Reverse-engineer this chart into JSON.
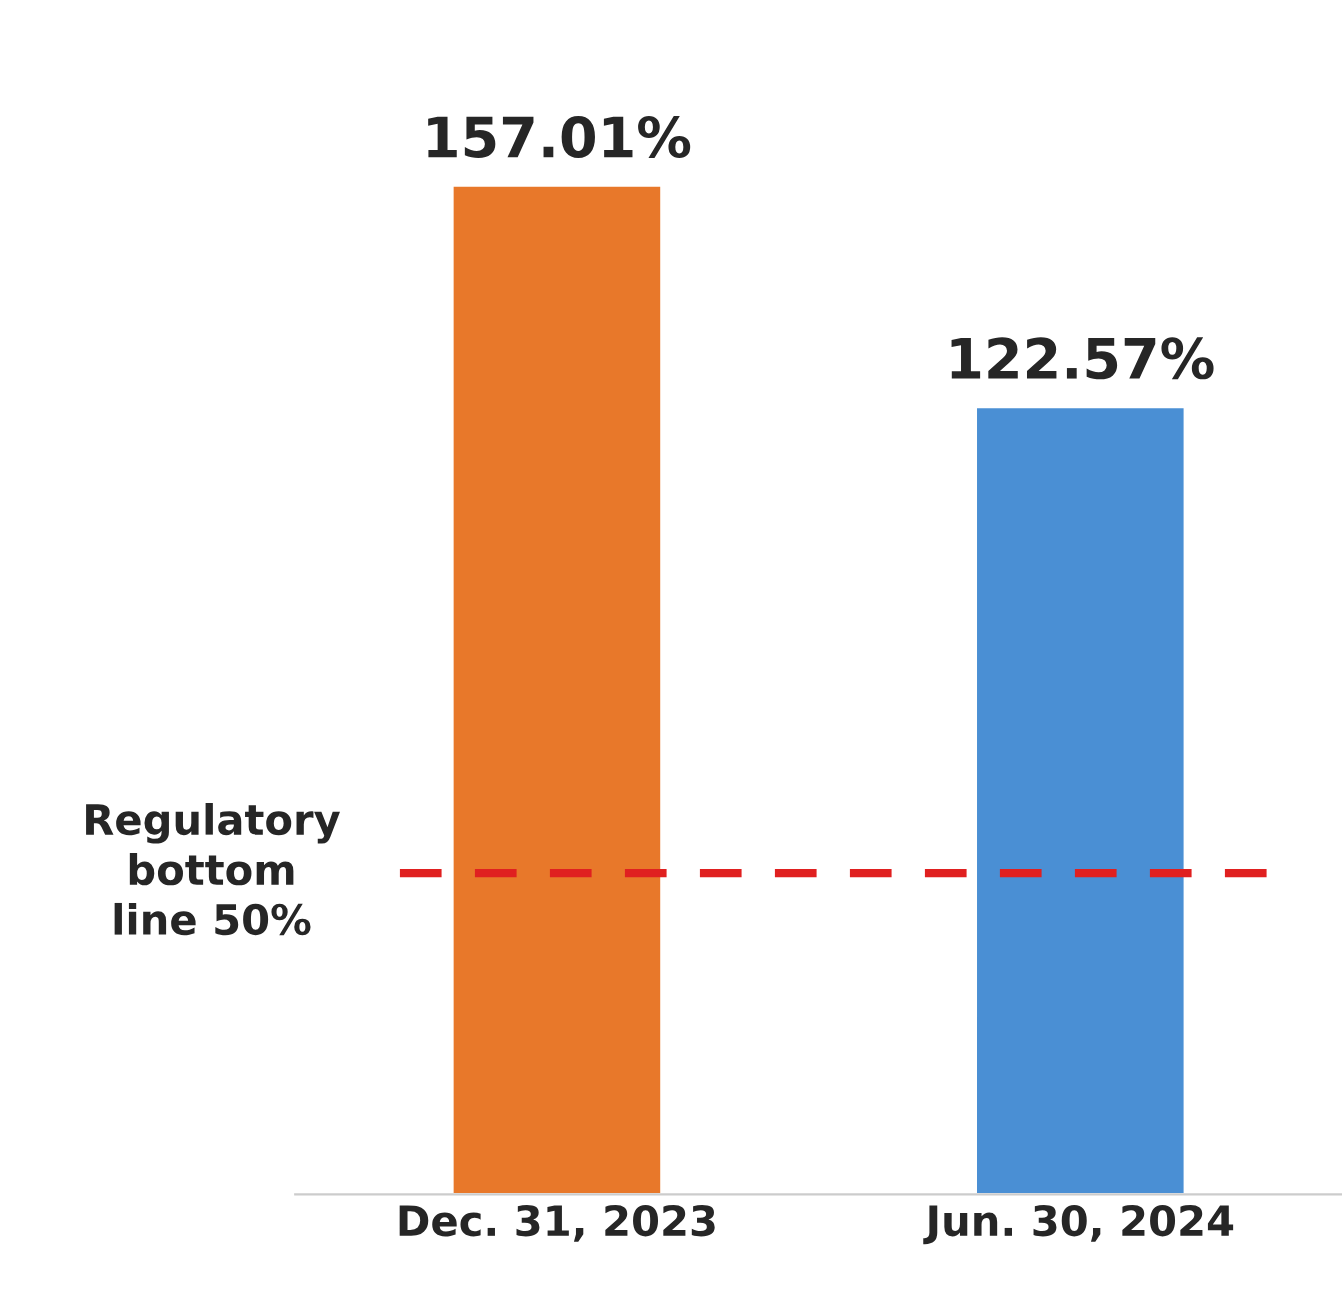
{
  "chart_data": {
    "type": "bar",
    "categories": [
      "Dec. 31, 2023",
      "Jun. 30, 2024"
    ],
    "values": [
      157.01,
      122.57
    ],
    "colors": [
      "#e8782a",
      "#4a8fd4"
    ],
    "value_labels": [
      "157.01%",
      "122.57%"
    ],
    "tick_labels": "x",
    "grid": false,
    "legend": false,
    "ref_lines": [
      {
        "axis": "y",
        "value": 50,
        "label": "Regulatory\nbottom\nline 50%",
        "color": "#e02020",
        "line_style": "dashed"
      }
    ]
  }
}
